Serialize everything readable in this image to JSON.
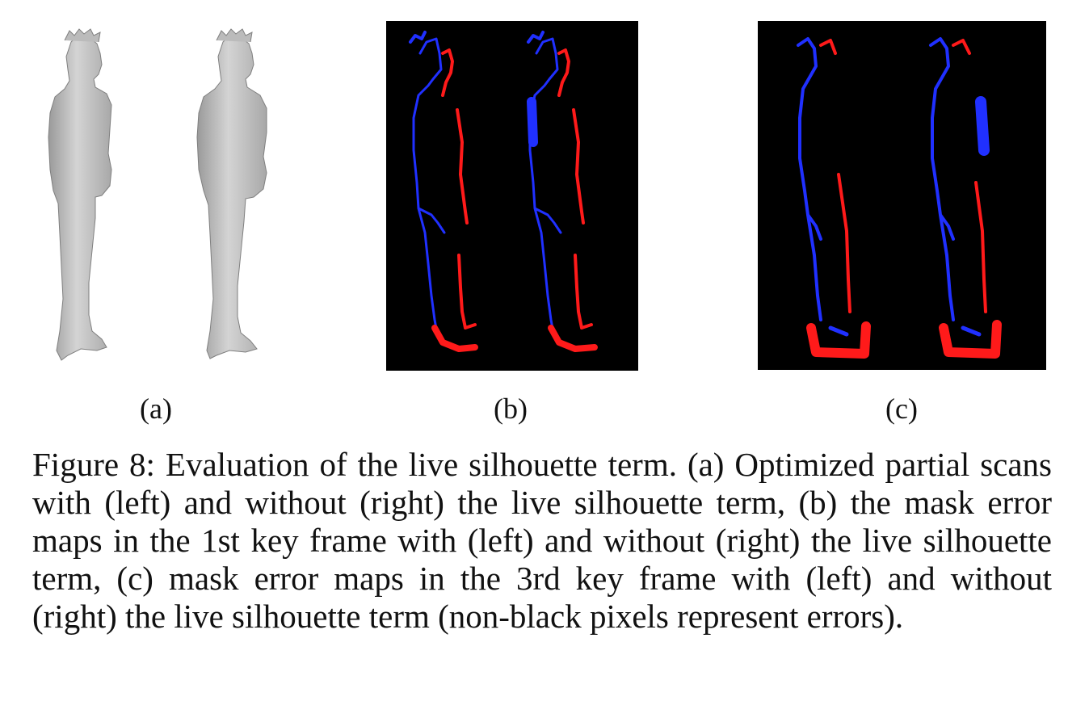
{
  "figure": {
    "subfigures": [
      {
        "id": "a",
        "label": "(a)"
      },
      {
        "id": "b",
        "label": "(b)"
      },
      {
        "id": "c",
        "label": "(c)"
      }
    ],
    "caption": "Figure 8: Evaluation of the live silhouette term. (a) Optimized partial scans with (left) and without (right) the live silhouette term, (b) the mask error maps in the 1st key frame with (left) and without (right) the live silhouette term, (c) mask error maps in the 3rd key frame with (left) and without (right) the live silhouette term (non-black pixels represent errors).",
    "colors": {
      "mesh": "#c8c8c8",
      "mesh_shadow": "#8a8a8a",
      "error_map_background": "#000000",
      "error_red": "#ff1a1a",
      "error_blue": "#2030ff"
    }
  }
}
